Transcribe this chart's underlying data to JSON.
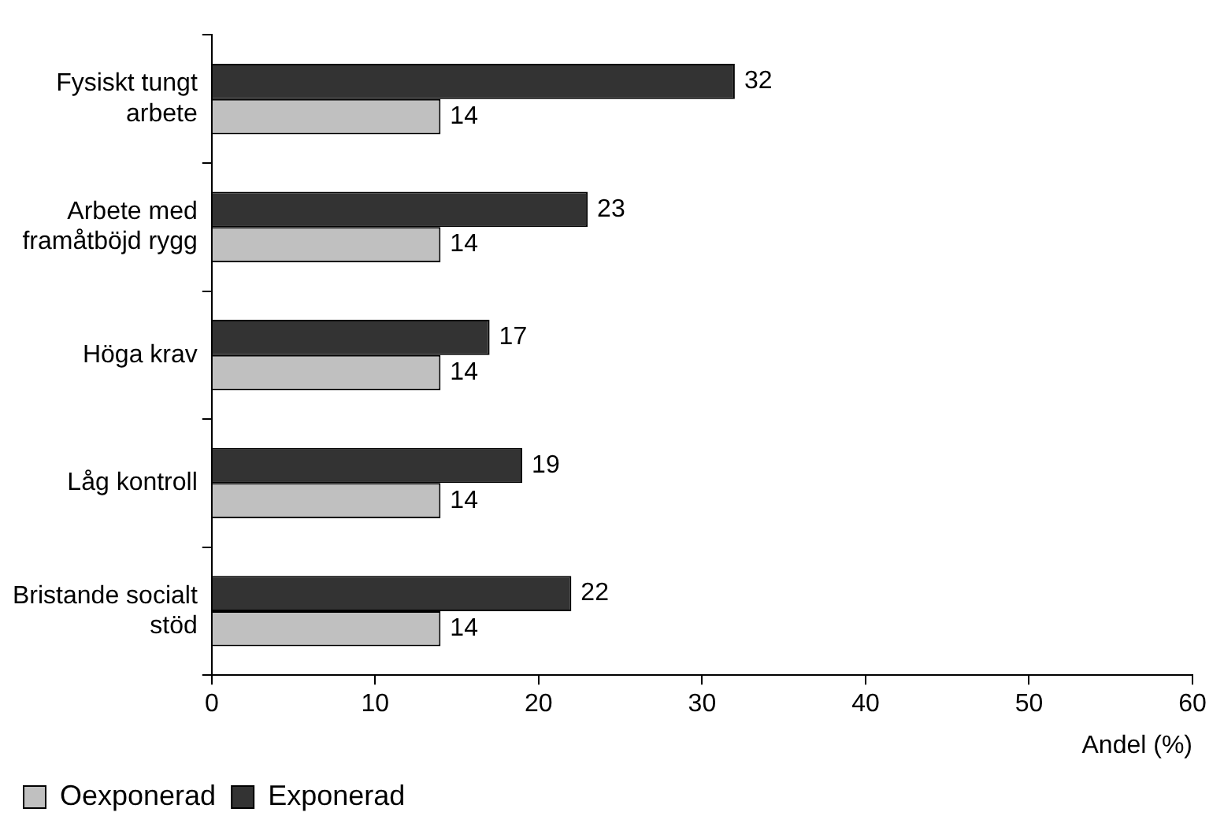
{
  "chart_data": {
    "type": "bar",
    "orientation": "horizontal",
    "xlabel": "Andel (%)",
    "categories": [
      "Fysiskt tungt arbete",
      "Arbete med framåtböjd rygg",
      "Höga krav",
      "Låg kontroll",
      "Bristande socialt stöd"
    ],
    "series": [
      {
        "name": "Exponerad",
        "color": "#333333",
        "values": [
          32,
          23,
          17,
          19,
          22
        ]
      },
      {
        "name": "Oexponerad",
        "color": "#c0c0c0",
        "values": [
          14,
          14,
          14,
          14,
          14
        ]
      }
    ],
    "xlim": [
      0,
      60
    ],
    "xticks": [
      0,
      10,
      20,
      30,
      40,
      50,
      60
    ],
    "data_labels": true,
    "legend": "bottom left",
    "grid": false
  }
}
